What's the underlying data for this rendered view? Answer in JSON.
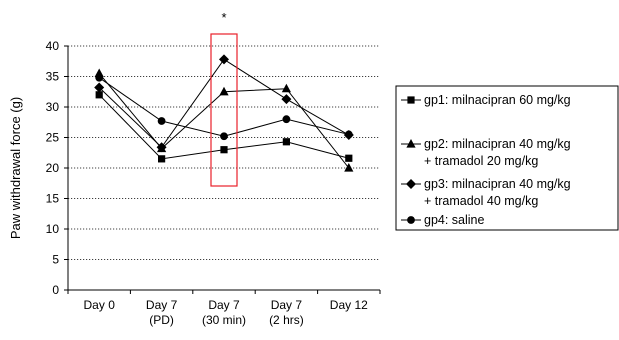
{
  "chart_data": {
    "type": "line",
    "ylabel": "Paw withdrawal force (g)",
    "ylim": [
      0,
      40
    ],
    "yticks": [
      0,
      5,
      10,
      15,
      20,
      25,
      30,
      35,
      40
    ],
    "categories": [
      [
        "Day 0"
      ],
      [
        "Day 7",
        "(PD)"
      ],
      [
        "Day 7",
        "(30 min)"
      ],
      [
        "Day 7",
        "(2 hrs)"
      ],
      [
        "Day 12"
      ]
    ],
    "grid": "horizontal dotted",
    "legend_position": "right",
    "series": [
      {
        "name": [
          "gp1: milnacipran 60 mg/kg"
        ],
        "marker": "square",
        "values": [
          32.0,
          21.5,
          23.0,
          24.3,
          21.6
        ]
      },
      {
        "name": [
          "gp2: milnacipran 40 mg/kg",
          "+ tramadol 20 mg/kg"
        ],
        "marker": "triangle",
        "values": [
          35.5,
          23.2,
          32.5,
          33.0,
          20.0
        ]
      },
      {
        "name": [
          "gp3: milnacipran 40 mg/kg",
          "+ tramadol 40 mg/kg"
        ],
        "marker": "diamond",
        "values": [
          33.2,
          23.4,
          37.8,
          31.3,
          25.4
        ]
      },
      {
        "name": [
          "gp4: saline"
        ],
        "marker": "circle",
        "values": [
          34.8,
          27.7,
          25.2,
          28.0,
          25.5
        ]
      }
    ],
    "annotation": {
      "text": "*",
      "category_index": 2,
      "highlight_box_color": "#e8202a"
    }
  }
}
